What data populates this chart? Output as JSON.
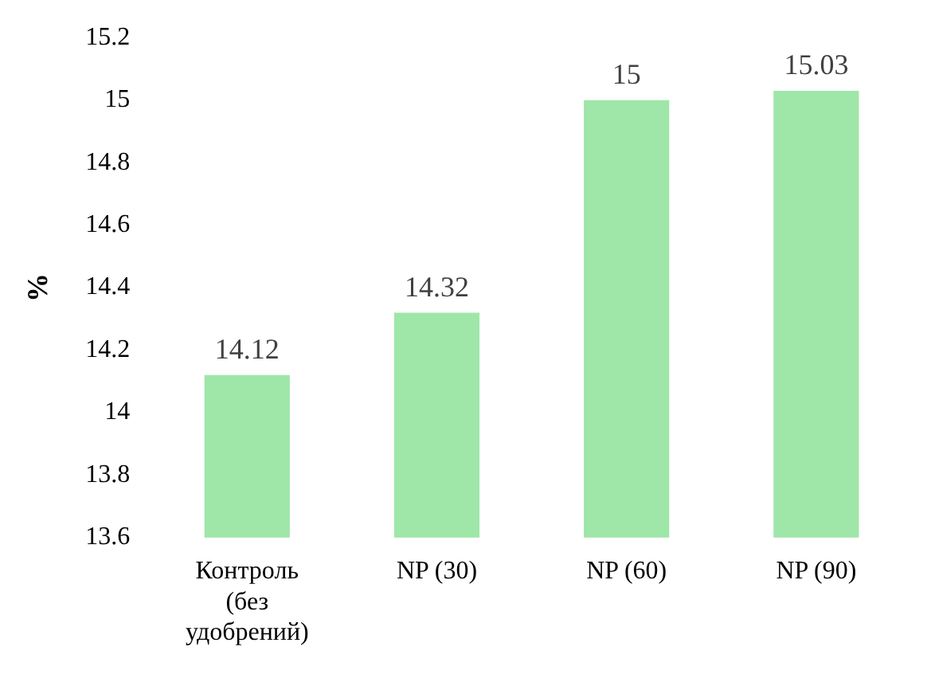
{
  "chart_data": {
    "type": "bar",
    "ylabel": "%",
    "categories": [
      "Контроль (без удобрений)",
      "NP (30)",
      "NP (60)",
      "NP (90)"
    ],
    "values": [
      14.12,
      14.32,
      15,
      15.03
    ],
    "color": "#9fe6a9",
    "ylim": [
      13.6,
      15.2
    ],
    "yticks": [
      13.6,
      13.8,
      14,
      14.2,
      14.4,
      14.6,
      14.8,
      15,
      15.2
    ],
    "grid": false,
    "legend": false,
    "data_labels": true
  }
}
